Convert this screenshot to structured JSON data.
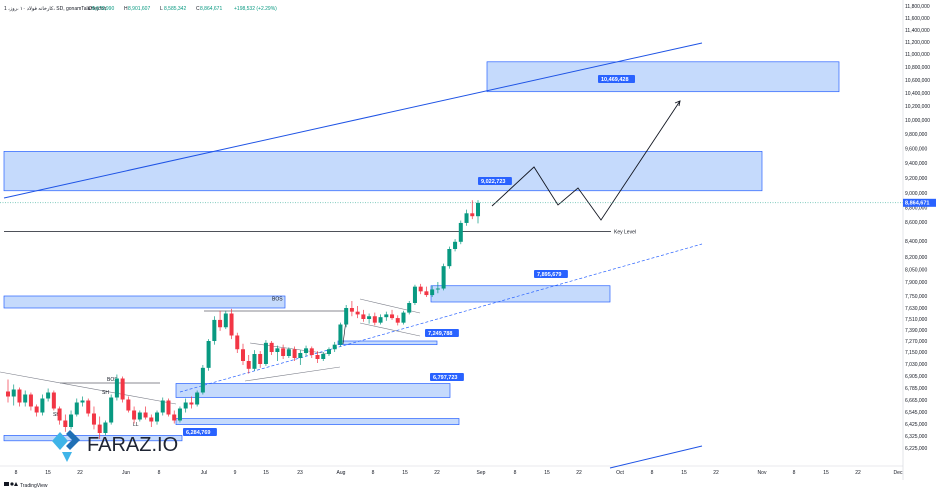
{
  "header": {
    "symbol": "1 ،کارخانه فولاد ۱۰ ،روز، SD, gonamTalaHejdoh",
    "ohlc": [
      {
        "k": "O",
        "v": "8,679,990"
      },
      {
        "k": "H",
        "v": "8,901,607"
      },
      {
        "k": "L",
        "v": "8,585,342"
      },
      {
        "k": "C",
        "v": "8,864,671"
      }
    ],
    "change": "+198,532 (+2.29%)"
  },
  "colors": {
    "up": "#089981",
    "down": "#f23645",
    "zone_fill": "#bbd4fb",
    "zone_stroke": "#2962ff",
    "label_bg": "#2962ff",
    "channel": "#1e53e5",
    "key_line": "#131722",
    "current_price": "#2962ff"
  },
  "watermark": {
    "text": "FARAZ.IO",
    "logo": "faraz-logo"
  },
  "footer": {
    "brand": "TradingView",
    "logo_icon": "tradingview-logo-icon"
  },
  "chart_data": {
    "type": "candlestick",
    "y_axis": {
      "range": [
        6200000,
        11850000
      ],
      "ticks": [
        "11,800,000",
        "11,600,000",
        "11,400,000",
        "11,200,000",
        "11,000,000",
        "10,800,000",
        "10,600,000",
        "10,400,000",
        "10,200,000",
        "10,000,000",
        "9,800,000",
        "9,600,000",
        "9,400,000",
        "9,200,000",
        "9,000,000",
        "8,800,000",
        "8,600,000",
        "8,400,000",
        "8,200,000",
        "8,050,000",
        "7,900,000",
        "7,750,000",
        "7,630,000",
        "7,510,000",
        "7,390,000",
        "7,270,000",
        "7,150,000",
        "7,030,000",
        "6,905,000",
        "6,785,000",
        "6,665,000",
        "6,545,000",
        "6,425,000",
        "6,325,000",
        "6,225,000"
      ]
    },
    "x_axis": {
      "ticks": [
        "8",
        "15",
        "22",
        "Jun",
        "8",
        "Jul",
        "9",
        "15",
        "23",
        "Aug",
        "8",
        "15",
        "22",
        "Sep",
        "8",
        "15",
        "22",
        "Oct",
        "8",
        "15",
        "22",
        "Nov",
        "8",
        "15",
        "22",
        "Dec"
      ]
    },
    "last_price": {
      "value": 8864671,
      "label": "8,864,671"
    },
    "zones": [
      {
        "name": "target-zone",
        "from": 10420000,
        "to": 10880000,
        "label": "10,469,428",
        "label_value": 10469428
      },
      {
        "name": "upper-resistance-zone",
        "from": 9030000,
        "to": 9560000,
        "label": "9,022,723",
        "label_value": 9022723
      },
      {
        "name": "support-zone-1",
        "from": 7690000,
        "to": 7860000,
        "label": "7,895,679",
        "label_value": 7895679
      },
      {
        "name": "left-zone-bos",
        "from": 7630000,
        "to": 7750000
      },
      {
        "name": "support-zone-2",
        "from": 7230000,
        "to": 7270000,
        "label": "7,249,788",
        "label_value": 7249788
      },
      {
        "name": "support-zone-3",
        "from": 6690000,
        "to": 6830000,
        "label": "6,797,723",
        "label_value": 6797723
      },
      {
        "name": "support-zone-4",
        "from": 6420000,
        "to": 6480000
      },
      {
        "name": "bottom-left-zone",
        "from": 6285000,
        "to": 6330000,
        "label": "6,284,769",
        "label_value": 6284769
      }
    ],
    "key_level": {
      "value": 8500000,
      "label": "Key Level"
    },
    "annotations": [
      {
        "text": "BOS",
        "value": 7720000
      },
      {
        "text": "BOS",
        "value": 6870000
      },
      {
        "text": "SH",
        "value": 6740000
      },
      {
        "text": "SH",
        "value": 6520000
      },
      {
        "text": "LL",
        "value": 6420000
      }
    ],
    "candles": [
      [
        6750000,
        6870000,
        6640000,
        6700000
      ],
      [
        6700000,
        6820000,
        6610000,
        6770000
      ],
      [
        6770000,
        6790000,
        6600000,
        6640000
      ],
      [
        6640000,
        6760000,
        6600000,
        6720000
      ],
      [
        6720000,
        6740000,
        6560000,
        6600000
      ],
      [
        6600000,
        6620000,
        6500000,
        6540000
      ],
      [
        6540000,
        6720000,
        6510000,
        6680000
      ],
      [
        6680000,
        6780000,
        6650000,
        6740000
      ],
      [
        6740000,
        6760000,
        6560000,
        6580000
      ],
      [
        6580000,
        6600000,
        6420000,
        6460000
      ],
      [
        6460000,
        6520000,
        6360000,
        6400000
      ],
      [
        6400000,
        6560000,
        6380000,
        6520000
      ],
      [
        6520000,
        6680000,
        6500000,
        6640000
      ],
      [
        6640000,
        6700000,
        6600000,
        6660000
      ],
      [
        6660000,
        6680000,
        6500000,
        6530000
      ],
      [
        6530000,
        6600000,
        6380000,
        6420000
      ],
      [
        6420000,
        6500000,
        6300000,
        6350000
      ],
      [
        6350000,
        6460000,
        6330000,
        6440000
      ],
      [
        6440000,
        6720000,
        6420000,
        6690000
      ],
      [
        6690000,
        6920000,
        6660000,
        6880000
      ],
      [
        6880000,
        6900000,
        6640000,
        6670000
      ],
      [
        6670000,
        6700000,
        6540000,
        6560000
      ],
      [
        6560000,
        6600000,
        6430000,
        6470000
      ],
      [
        6470000,
        6560000,
        6450000,
        6540000
      ],
      [
        6540000,
        6600000,
        6470000,
        6490000
      ],
      [
        6490000,
        6520000,
        6400000,
        6450000
      ],
      [
        6450000,
        6560000,
        6420000,
        6540000
      ],
      [
        6540000,
        6690000,
        6510000,
        6660000
      ],
      [
        6660000,
        6680000,
        6500000,
        6520000
      ],
      [
        6520000,
        6560000,
        6430000,
        6460000
      ],
      [
        6460000,
        6600000,
        6440000,
        6580000
      ],
      [
        6580000,
        6680000,
        6540000,
        6640000
      ],
      [
        6640000,
        6700000,
        6580000,
        6620000
      ],
      [
        6620000,
        6760000,
        6600000,
        6740000
      ],
      [
        6740000,
        7020000,
        6720000,
        6990000
      ],
      [
        6990000,
        7290000,
        6960000,
        7270000
      ],
      [
        7270000,
        7540000,
        7230000,
        7500000
      ],
      [
        7500000,
        7600000,
        7380000,
        7420000
      ],
      [
        7420000,
        7600000,
        7400000,
        7570000
      ],
      [
        7570000,
        7620000,
        7290000,
        7330000
      ],
      [
        7330000,
        7360000,
        7140000,
        7180000
      ],
      [
        7180000,
        7240000,
        7020000,
        7060000
      ],
      [
        7060000,
        7120000,
        6930000,
        6980000
      ],
      [
        6980000,
        7170000,
        6960000,
        7130000
      ],
      [
        7130000,
        7160000,
        6990000,
        7030000
      ],
      [
        7030000,
        7280000,
        7010000,
        7250000
      ],
      [
        7250000,
        7270000,
        7120000,
        7150000
      ],
      [
        7150000,
        7220000,
        7060000,
        7190000
      ],
      [
        7190000,
        7230000,
        7080000,
        7110000
      ],
      [
        7110000,
        7200000,
        7090000,
        7180000
      ],
      [
        7180000,
        7210000,
        7060000,
        7090000
      ],
      [
        7090000,
        7170000,
        7020000,
        7140000
      ],
      [
        7140000,
        7220000,
        7110000,
        7190000
      ],
      [
        7190000,
        7210000,
        7090000,
        7120000
      ],
      [
        7120000,
        7160000,
        7040000,
        7080000
      ],
      [
        7080000,
        7150000,
        7060000,
        7130000
      ],
      [
        7130000,
        7200000,
        7110000,
        7180000
      ],
      [
        7180000,
        7260000,
        7150000,
        7230000
      ],
      [
        7230000,
        7470000,
        7210000,
        7450000
      ],
      [
        7450000,
        7660000,
        7420000,
        7630000
      ],
      [
        7630000,
        7700000,
        7540000,
        7590000
      ],
      [
        7590000,
        7650000,
        7520000,
        7560000
      ],
      [
        7560000,
        7610000,
        7480000,
        7510000
      ],
      [
        7510000,
        7570000,
        7460000,
        7540000
      ],
      [
        7540000,
        7580000,
        7440000,
        7470000
      ],
      [
        7470000,
        7560000,
        7450000,
        7530000
      ],
      [
        7530000,
        7590000,
        7490000,
        7560000
      ],
      [
        7560000,
        7610000,
        7500000,
        7520000
      ],
      [
        7520000,
        7550000,
        7440000,
        7470000
      ],
      [
        7470000,
        7600000,
        7450000,
        7580000
      ],
      [
        7580000,
        7700000,
        7560000,
        7680000
      ],
      [
        7680000,
        7870000,
        7660000,
        7850000
      ],
      [
        7850000,
        7880000,
        7770000,
        7800000
      ],
      [
        7800000,
        7850000,
        7740000,
        7760000
      ],
      [
        7760000,
        7860000,
        7740000,
        7820000
      ],
      [
        7820000,
        7900000,
        7780000,
        7830000
      ],
      [
        7830000,
        8120000,
        7810000,
        8090000
      ],
      [
        8090000,
        8330000,
        8060000,
        8300000
      ],
      [
        8300000,
        8420000,
        8270000,
        8390000
      ],
      [
        8390000,
        8620000,
        8360000,
        8590000
      ],
      [
        8590000,
        8770000,
        8560000,
        8720000
      ],
      [
        8720000,
        8900000,
        8640000,
        8680000
      ],
      [
        8679990,
        8901607,
        8585342,
        8864671
      ]
    ]
  }
}
